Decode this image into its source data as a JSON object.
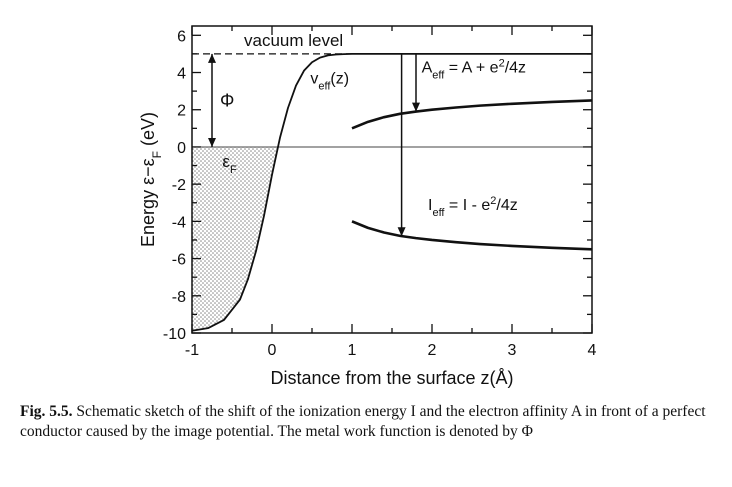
{
  "chart_data": {
    "type": "line",
    "title": "",
    "xlabel": "Distance from the surface z(Å)",
    "ylabel": "Energy ε−ε",
    "ylabel_sub": "F",
    "ylabel_unit": " (eV)",
    "xlim": [
      -1,
      4
    ],
    "ylim": [
      -10,
      6.5
    ],
    "x_ticks": [
      -1,
      0,
      1,
      2,
      3,
      4
    ],
    "y_ticks": [
      -10,
      -8,
      -6,
      -4,
      -2,
      0,
      2,
      4,
      6
    ],
    "grid": false,
    "legend": "none",
    "vacuum_level": 5,
    "fermi_level": 0,
    "metal_bottom": -9.9,
    "series": [
      {
        "name": "v_eff(z)",
        "x": [
          -1.0,
          -0.8,
          -0.6,
          -0.4,
          -0.3,
          -0.2,
          -0.1,
          0.0,
          0.1,
          0.2,
          0.3,
          0.4,
          0.5,
          0.6,
          0.7,
          0.8,
          0.9,
          1.0,
          4.0
        ],
        "y": [
          -9.88,
          -9.74,
          -9.3,
          -8.2,
          -7.1,
          -5.6,
          -3.7,
          -1.5,
          0.5,
          2.1,
          3.3,
          4.1,
          4.55,
          4.8,
          4.92,
          4.97,
          4.99,
          5.0,
          5.0
        ]
      },
      {
        "name": "A_eff",
        "x": [
          1.0,
          1.2,
          1.4,
          1.6,
          1.8,
          2.0,
          2.3,
          2.6,
          3.0,
          3.5,
          4.0
        ],
        "y": [
          1.0,
          1.35,
          1.6,
          1.78,
          1.9,
          2.0,
          2.12,
          2.22,
          2.32,
          2.42,
          2.5
        ]
      },
      {
        "name": "I_eff",
        "x": [
          1.0,
          1.2,
          1.4,
          1.6,
          1.8,
          2.0,
          2.3,
          2.6,
          3.0,
          3.5,
          4.0
        ],
        "y": [
          -4.0,
          -4.35,
          -4.6,
          -4.78,
          -4.9,
          -5.0,
          -5.12,
          -5.22,
          -5.32,
          -5.42,
          -5.5
        ]
      }
    ],
    "arrows": [
      {
        "name": "work-function",
        "x": -0.75,
        "y_from": 5,
        "y_to": 0
      },
      {
        "name": "A_eff",
        "x": 1.8,
        "y_from": 5,
        "y_to": 1.9
      },
      {
        "name": "I_eff",
        "x": 1.62,
        "y_from": 5,
        "y_to": -4.8
      }
    ],
    "annotations": {
      "vacuum_level": "vacuum level",
      "phi": "Φ",
      "epsilon": "ε",
      "epsilon_sub": "F",
      "v_main": "v",
      "v_sub": "eff",
      "v_tail": "(z)",
      "a_main": "A",
      "a_sub": "eff",
      "a_rhs": " = A + e",
      "a_sup": "2",
      "a_tail": "/4z",
      "i_main": "I",
      "i_sub": "eff",
      "i_rhs": " = I - e",
      "i_sup": "2",
      "i_tail": "/4z"
    }
  },
  "caption": {
    "label": "Fig. 5.5.",
    "text": " Schematic sketch of the shift of the ionization energy I and the electron affinity A in front of a perfect conductor caused by the image potential. The metal work function is denoted by Φ"
  }
}
